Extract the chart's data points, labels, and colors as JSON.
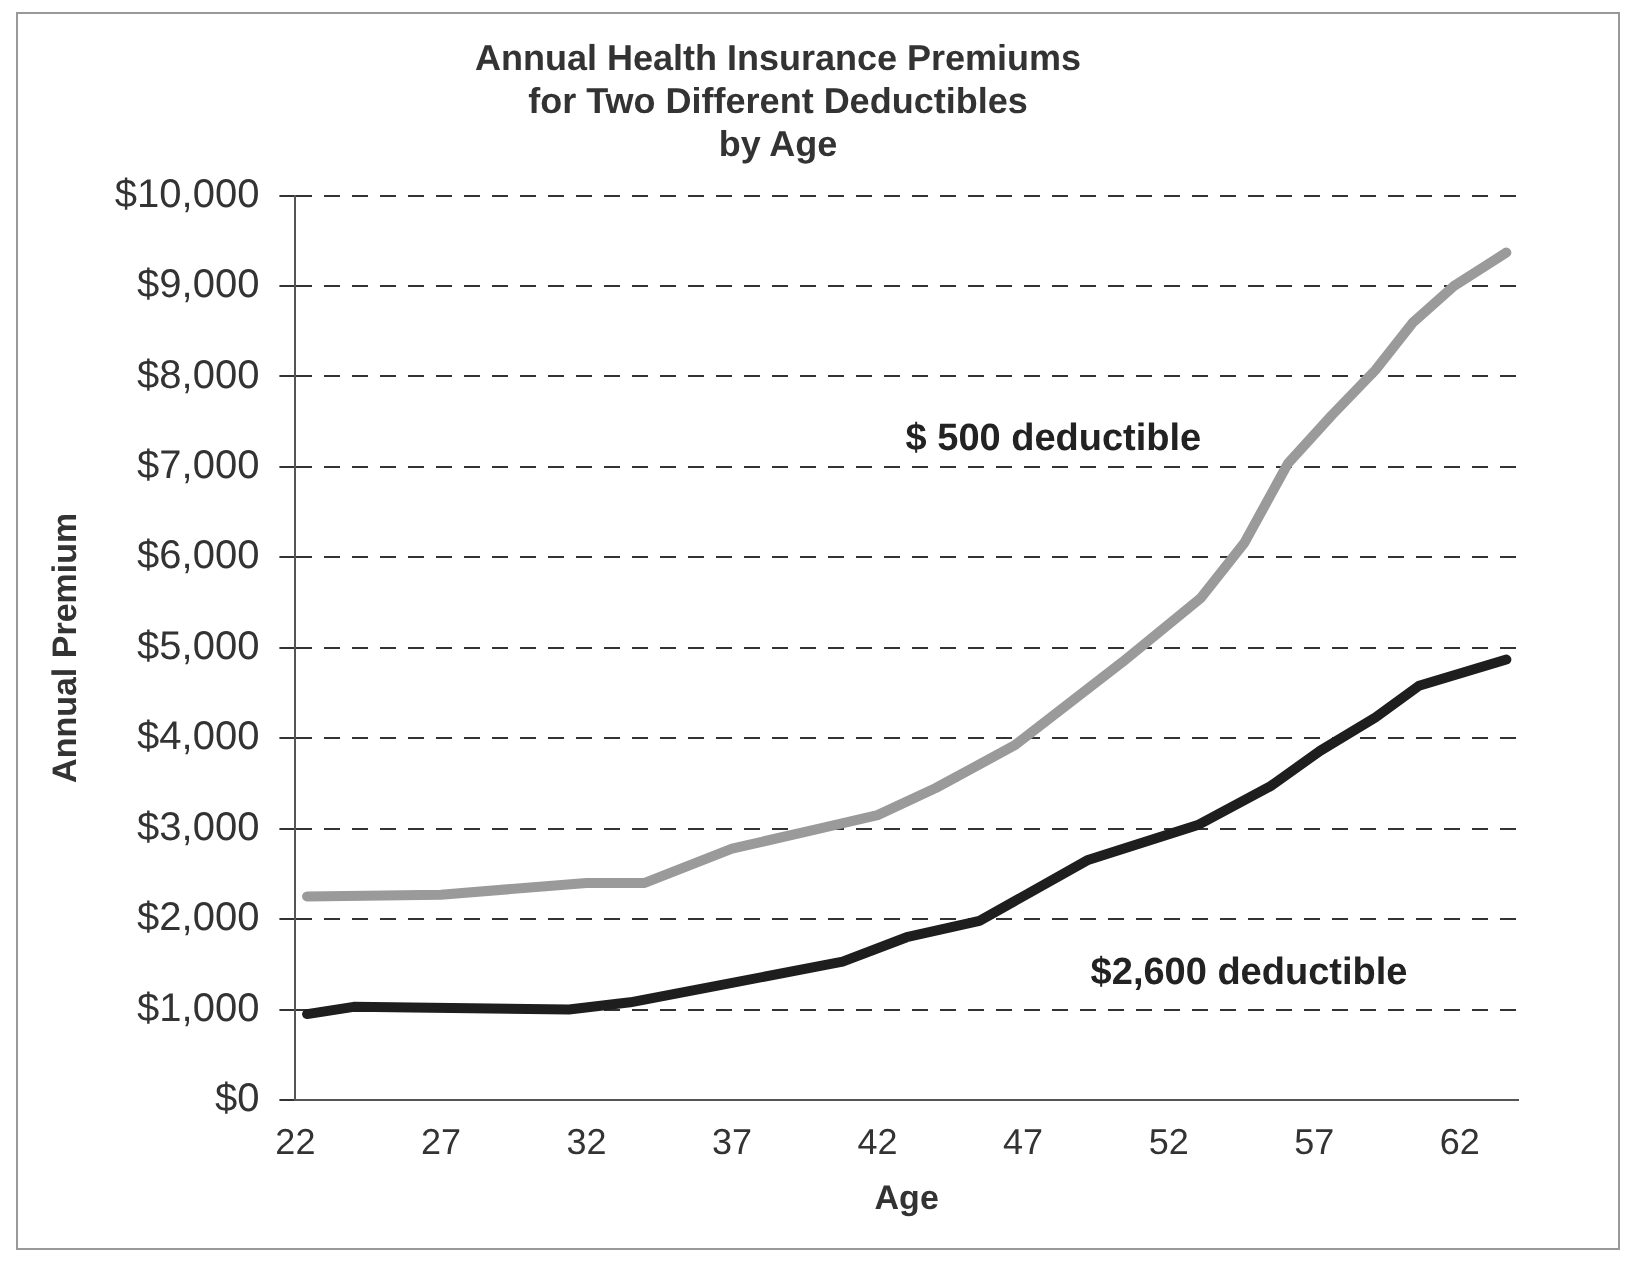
{
  "chart_data": {
    "type": "line",
    "title": "Annual Health Insurance Premiums\nfor Two Different Deductibles\nby Age",
    "xlabel": "Age",
    "ylabel": "Annual Premium",
    "xlim": [
      22,
      64
    ],
    "xticks": [
      22,
      27,
      32,
      37,
      42,
      47,
      52,
      57,
      62
    ],
    "ylim": [
      0,
      10000
    ],
    "yticks": [
      {
        "value": 0,
        "label": "$0"
      },
      {
        "value": 1000,
        "label": "$1,000"
      },
      {
        "value": 2000,
        "label": "$2,000"
      },
      {
        "value": 3000,
        "label": "$3,000"
      },
      {
        "value": 4000,
        "label": "$4,000"
      },
      {
        "value": 5000,
        "label": "$5,000"
      },
      {
        "value": 6000,
        "label": "$6,000"
      },
      {
        "value": 7000,
        "label": "$7,000"
      },
      {
        "value": 8000,
        "label": "$8,000"
      },
      {
        "value": 9000,
        "label": "$9,000"
      },
      {
        "value": 10000,
        "label": "$10,000"
      }
    ],
    "grid": "y",
    "legend": false,
    "marker": "none",
    "line_style": "solid",
    "series": [
      {
        "name": "$ 500 deductible",
        "color": "#9a9a9a",
        "x": [
          22.4,
          27,
          32,
          34,
          37,
          40,
          42,
          44,
          46.7,
          50.4,
          53.1,
          54.6,
          56.1,
          57.6,
          59.1,
          60.4,
          61.8,
          63.6
        ],
        "values": [
          2250,
          2270,
          2400,
          2400,
          2780,
          3000,
          3150,
          3450,
          3920,
          4840,
          5550,
          6160,
          7040,
          7570,
          8070,
          8600,
          9000,
          9370
        ]
      },
      {
        "name": "$2,600 deductible",
        "color": "#1e1e1e",
        "x": [
          22.4,
          24,
          31.4,
          33.5,
          36.6,
          40.8,
          43,
          45.5,
          49.2,
          53,
          55.5,
          57.2,
          59.1,
          60.6,
          63.6
        ],
        "values": [
          950,
          1030,
          1000,
          1080,
          1270,
          1530,
          1800,
          1980,
          2650,
          3040,
          3470,
          3860,
          4230,
          4580,
          4870
        ]
      }
    ]
  }
}
